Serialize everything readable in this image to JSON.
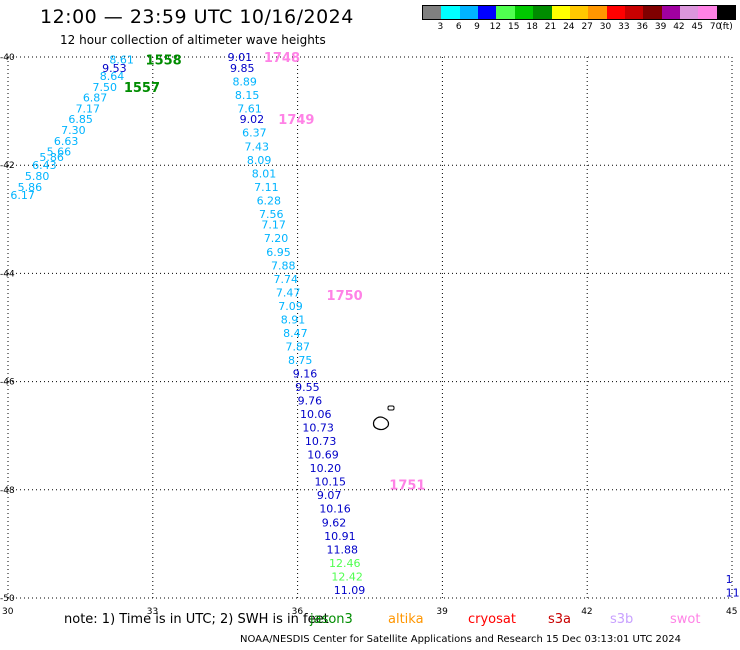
{
  "header": {
    "title": "12:00 — 23:59 UTC 10/16/2024",
    "subtitle": "12 hour collection of altimeter wave heights"
  },
  "legend": {
    "colors": [
      "#808080",
      "#00ffff",
      "#00b4ff",
      "#0000ff",
      "#50ff50",
      "#00c800",
      "#008c00",
      "#ffff00",
      "#ffc800",
      "#ff9600",
      "#ff0000",
      "#c80000",
      "#800000",
      "#a000a0",
      "#dc96dc",
      "#ff82e6",
      "#000000"
    ],
    "labels": [
      "3",
      "6",
      "9",
      "12",
      "15",
      "18",
      "21",
      "24",
      "27",
      "30",
      "33",
      "36",
      "39",
      "42",
      "45",
      "70",
      "(ft)"
    ]
  },
  "map": {
    "lon_ticks": [
      "30",
      "33",
      "36",
      "39",
      "42",
      "45"
    ],
    "lat_ticks": [
      "-40",
      "-42",
      "-44",
      "-46",
      "-48",
      "-50"
    ],
    "lon_range": [
      30,
      45
    ],
    "lat_range": [
      -40,
      -50
    ],
    "tracks": [
      {
        "color": "#00b4ff",
        "points": [
          {
            "lon": 32.1,
            "lat": -40.05,
            "v": "8.61"
          },
          {
            "lon": 31.9,
            "lat": -40.35,
            "v": "8.64"
          },
          {
            "lon": 31.75,
            "lat": -40.55,
            "v": "7.50"
          },
          {
            "lon": 31.55,
            "lat": -40.75,
            "v": "6.87"
          },
          {
            "lon": 31.4,
            "lat": -40.95,
            "v": "7.17"
          },
          {
            "lon": 31.25,
            "lat": -41.15,
            "v": "6.85"
          },
          {
            "lon": 31.1,
            "lat": -41.35,
            "v": "7.30"
          },
          {
            "lon": 30.95,
            "lat": -41.55,
            "v": "6.63"
          },
          {
            "lon": 30.8,
            "lat": -41.75,
            "v": "5.66"
          },
          {
            "lon": 30.65,
            "lat": -41.85,
            "v": "5.86"
          },
          {
            "lon": 30.5,
            "lat": -42.0,
            "v": "6.43"
          },
          {
            "lon": 30.35,
            "lat": -42.2,
            "v": "5.80"
          },
          {
            "lon": 30.2,
            "lat": -42.4,
            "v": "5.86"
          },
          {
            "lon": 30.05,
            "lat": -42.55,
            "v": "6.17"
          }
        ]
      },
      {
        "color": "#0000c8",
        "points": [
          {
            "lon": 31.95,
            "lat": -40.2,
            "v": "9.53"
          }
        ]
      }
    ],
    "track_b": [
      {
        "lon": 34.55,
        "lat": -40.0,
        "v": "9.01",
        "c": "#0000c8"
      },
      {
        "lon": 34.6,
        "lat": -40.2,
        "v": "9.85",
        "c": "#0000c8"
      },
      {
        "lon": 34.65,
        "lat": -40.45,
        "v": "8.89",
        "c": "#00b4ff"
      },
      {
        "lon": 34.7,
        "lat": -40.7,
        "v": "8.15",
        "c": "#00b4ff"
      },
      {
        "lon": 34.75,
        "lat": -40.95,
        "v": "7.61",
        "c": "#00b4ff"
      },
      {
        "lon": 34.8,
        "lat": -41.15,
        "v": "9.02",
        "c": "#0000c8"
      },
      {
        "lon": 34.85,
        "lat": -41.4,
        "v": "6.37",
        "c": "#00b4ff"
      },
      {
        "lon": 34.9,
        "lat": -41.65,
        "v": "7.43",
        "c": "#00b4ff"
      },
      {
        "lon": 34.95,
        "lat": -41.9,
        "v": "8.09",
        "c": "#00b4ff"
      },
      {
        "lon": 35.05,
        "lat": -42.15,
        "v": "8.01",
        "c": "#00b4ff"
      },
      {
        "lon": 35.1,
        "lat": -42.4,
        "v": "7.11",
        "c": "#00b4ff"
      },
      {
        "lon": 35.15,
        "lat": -42.65,
        "v": "6.28",
        "c": "#00b4ff"
      },
      {
        "lon": 35.2,
        "lat": -42.9,
        "v": "7.56",
        "c": "#00b4ff"
      },
      {
        "lon": 35.25,
        "lat": -43.1,
        "v": "7.17",
        "c": "#00b4ff"
      },
      {
        "lon": 35.3,
        "lat": -43.35,
        "v": "7.20",
        "c": "#00b4ff"
      },
      {
        "lon": 35.35,
        "lat": -43.6,
        "v": "6.95",
        "c": "#00b4ff"
      },
      {
        "lon": 35.45,
        "lat": -43.85,
        "v": "7.88",
        "c": "#00b4ff"
      },
      {
        "lon": 35.5,
        "lat": -44.1,
        "v": "7.74",
        "c": "#00b4ff"
      },
      {
        "lon": 35.55,
        "lat": -44.35,
        "v": "7.47",
        "c": "#00b4ff"
      },
      {
        "lon": 35.6,
        "lat": -44.6,
        "v": "7.09",
        "c": "#00b4ff"
      },
      {
        "lon": 35.65,
        "lat": -44.85,
        "v": "8.91",
        "c": "#00b4ff"
      },
      {
        "lon": 35.7,
        "lat": -45.1,
        "v": "8.47",
        "c": "#00b4ff"
      },
      {
        "lon": 35.75,
        "lat": -45.35,
        "v": "7.87",
        "c": "#00b4ff"
      },
      {
        "lon": 35.8,
        "lat": -45.6,
        "v": "8.75",
        "c": "#00b4ff"
      },
      {
        "lon": 35.9,
        "lat": -45.85,
        "v": "9.16",
        "c": "#0000c8"
      },
      {
        "lon": 35.95,
        "lat": -46.1,
        "v": "9.55",
        "c": "#0000c8"
      },
      {
        "lon": 36.0,
        "lat": -46.35,
        "v": "9.76",
        "c": "#0000c8"
      },
      {
        "lon": 36.05,
        "lat": -46.6,
        "v": "10.06",
        "c": "#0000c8"
      },
      {
        "lon": 36.1,
        "lat": -46.85,
        "v": "10.73",
        "c": "#0000c8"
      },
      {
        "lon": 36.15,
        "lat": -47.1,
        "v": "10.73",
        "c": "#0000c8"
      },
      {
        "lon": 36.2,
        "lat": -47.35,
        "v": "10.69",
        "c": "#0000c8"
      },
      {
        "lon": 36.25,
        "lat": -47.6,
        "v": "10.20",
        "c": "#0000c8"
      },
      {
        "lon": 36.35,
        "lat": -47.85,
        "v": "10.15",
        "c": "#0000c8"
      },
      {
        "lon": 36.4,
        "lat": -48.1,
        "v": "9.07",
        "c": "#0000c8"
      },
      {
        "lon": 36.45,
        "lat": -48.35,
        "v": "10.16",
        "c": "#0000c8"
      },
      {
        "lon": 36.5,
        "lat": -48.6,
        "v": "9.62",
        "c": "#0000c8"
      },
      {
        "lon": 36.55,
        "lat": -48.85,
        "v": "10.91",
        "c": "#0000c8"
      },
      {
        "lon": 36.6,
        "lat": -49.1,
        "v": "11.88",
        "c": "#0000c8"
      },
      {
        "lon": 36.65,
        "lat": -49.35,
        "v": "12.46",
        "c": "#50ff50"
      },
      {
        "lon": 36.7,
        "lat": -49.6,
        "v": "12.42",
        "c": "#50ff50"
      },
      {
        "lon": 36.75,
        "lat": -49.85,
        "v": "11.09",
        "c": "#0000c8"
      }
    ],
    "time_marks": [
      {
        "lon": 32.85,
        "lat": -40.05,
        "t": "1558",
        "c": "#008c00"
      },
      {
        "lon": 32.4,
        "lat": -40.55,
        "t": "1557",
        "c": "#008c00"
      },
      {
        "lon": 35.3,
        "lat": -40.0,
        "t": "1748",
        "c": "#ff82e6"
      },
      {
        "lon": 35.6,
        "lat": -41.15,
        "t": "1749",
        "c": "#ff82e6"
      },
      {
        "lon": 36.6,
        "lat": -44.4,
        "t": "1750",
        "c": "#ff82e6"
      },
      {
        "lon": 37.9,
        "lat": -47.9,
        "t": "1751",
        "c": "#ff82e6"
      }
    ],
    "right_edge": [
      {
        "lon": 44.95,
        "lat": -49.65,
        "v": "1"
      },
      {
        "lon": 44.95,
        "lat": -49.9,
        "v": "11"
      }
    ]
  },
  "footer": {
    "note": "note:  1) Time is in UTC; 2) SWH is in feet",
    "satellites": [
      {
        "name": "jason3",
        "color": "#008c00",
        "left": 310
      },
      {
        "name": "altika",
        "color": "#ff9600",
        "left": 388
      },
      {
        "name": "cryosat",
        "color": "#ff0000",
        "left": 468
      },
      {
        "name": "s3a",
        "color": "#c80000",
        "left": 548
      },
      {
        "name": "s3b",
        "color": "#c8a0ff",
        "left": 610
      },
      {
        "name": "swot",
        "color": "#ff82e6",
        "left": 670
      }
    ],
    "credit": "NOAA/NESDIS Center for Satellite Applications and Research    15 Dec 03:13:01 UTC 2024"
  }
}
